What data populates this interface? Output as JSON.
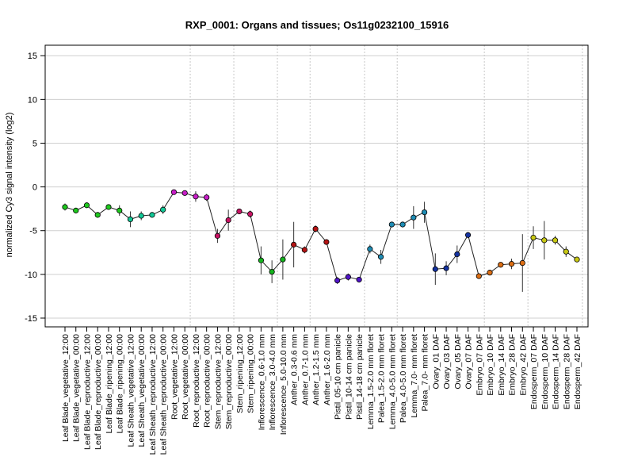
{
  "chart_data": {
    "type": "line",
    "title": "RXP_0001: Organs and tissues; Os11g0232100_15916",
    "xlabel": "",
    "ylabel": "normalized Cy3 signal intensity (log2)",
    "ylim": [
      -16,
      16.2
    ],
    "yticks": [
      -15,
      -10,
      -5,
      0,
      5,
      10,
      15
    ],
    "grid": true,
    "legend": "none",
    "group_boundaries_after_index": [
      11,
      15,
      19,
      22,
      27,
      30,
      38,
      42,
      47
    ],
    "categories": [
      "Leaf Blade_vegetative_12:00",
      "Leaf Blade_vegetative_00:00",
      "Leaf Blade_reproductive_12:00",
      "Leaf Blade_reproductive_00:00",
      "Leaf Blade_ripening_12:00",
      "Leaf Blade_ripening_00:00",
      "Leaf Sheath_vegetative_12:00",
      "Leaf Sheath_vegetative_00:00",
      "Leaf Sheath_reproductive_12:00",
      "Leaf Sheath_reproductive_00:00",
      "Root_vegetative_12:00",
      "Root_vegetative_00:00",
      "Root_reproductive_12:00",
      "Root_reproductive_00:00",
      "Stem_reproductive_12:00",
      "Stem_reproductive_00:00",
      "Stem_ripening_12:00",
      "Stem_ripening_00:00",
      "Inflorescence_0.6-1.0 mm",
      "Inflorescence_3.0-4.0 mm",
      "Inflorescence_5.0-10.0 mm",
      "Anther_0.3-0.6 mm",
      "Anther_0.7-1.0 mm",
      "Anther_1.2-1.5 mm",
      "Anther_1.6-2.0 mm",
      "Pistil_05-10 cm panicle",
      "Pistil_10-14 cm panicle",
      "Pistil_14-18 cm panicle",
      "Lemma_1.5-2.0 mm floret",
      "Palea_1.5-2.0 mm floret",
      "Lemma_4.0-5.0 mm floret",
      "Palea_4.0-5.0 mm floret",
      "Lemma_7.0- mm floret",
      "Palea_7.0- mm floret",
      "Ovary_01 DAF",
      "Ovary_03 DAF",
      "Ovary_05 DAF",
      "Ovary_07 DAF",
      "Embryo_07 DAF",
      "Embryo_10 DAF",
      "Embryo_14 DAF",
      "Embryo_28 DAF",
      "Embryo_42 DAF",
      "Endosperm_07 DAF",
      "Endosperm_10 DAF",
      "Endosperm_14 DAF",
      "Endosperm_28 DAF",
      "Endosperm_42 DAF"
    ],
    "values": [
      -2.3,
      -2.7,
      -2.1,
      -3.2,
      -2.3,
      -2.7,
      -3.7,
      -3.3,
      -3.2,
      -2.6,
      -0.6,
      -0.7,
      -1.1,
      -1.2,
      -5.6,
      -3.8,
      -2.8,
      -3.1,
      -8.4,
      -9.7,
      -8.3,
      -6.6,
      -7.2,
      -4.8,
      -6.3,
      -10.7,
      -10.3,
      -10.6,
      -7.1,
      -8.0,
      -4.3,
      -4.3,
      -3.5,
      -2.9,
      -9.4,
      -9.3,
      -7.7,
      -5.5,
      -10.2,
      -9.8,
      -8.9,
      -8.8,
      -8.7,
      -5.8,
      -6.1,
      -6.1,
      -7.4,
      -8.3
    ],
    "errors": [
      0.4,
      0.3,
      0.3,
      0.3,
      0.3,
      0.6,
      0.9,
      0.5,
      0.2,
      0.5,
      0.3,
      0.3,
      0.6,
      0.4,
      0.8,
      1.2,
      0.3,
      0.4,
      1.6,
      1.3,
      2.3,
      2.6,
      0.4,
      0.4,
      0.3,
      0.4,
      0.4,
      0.3,
      0.5,
      0.8,
      0.2,
      0.2,
      1.3,
      1.2,
      1.8,
      0.8,
      1.0,
      0.3,
      0.1,
      0.2,
      0.3,
      0.6,
      3.3,
      1.3,
      2.2,
      0.5,
      0.6,
      0.3
    ],
    "point_colors": [
      "#1ec81e",
      "#1ec81e",
      "#1ec81e",
      "#1ec81e",
      "#1ec81e",
      "#1ec81e",
      "#12c896",
      "#12c896",
      "#12c896",
      "#12c896",
      "#c81ec8",
      "#c81ec8",
      "#c81ec8",
      "#c81ec8",
      "#c81464",
      "#c81464",
      "#c81464",
      "#c81464",
      "#14b41e",
      "#14b41e",
      "#14b41e",
      "#b41414",
      "#b41414",
      "#b41414",
      "#b41414",
      "#5014c8",
      "#5014c8",
      "#5014c8",
      "#1e8cb4",
      "#1e8cb4",
      "#1e8cb4",
      "#1e8cb4",
      "#1e8cb4",
      "#1e8cb4",
      "#1432a0",
      "#1432a0",
      "#1432a0",
      "#1432a0",
      "#dc6e14",
      "#dc6e14",
      "#dc6e14",
      "#dc6e14",
      "#dc6e14",
      "#c8c814",
      "#c8c814",
      "#c8c814",
      "#c8c814",
      "#c8c814"
    ]
  }
}
